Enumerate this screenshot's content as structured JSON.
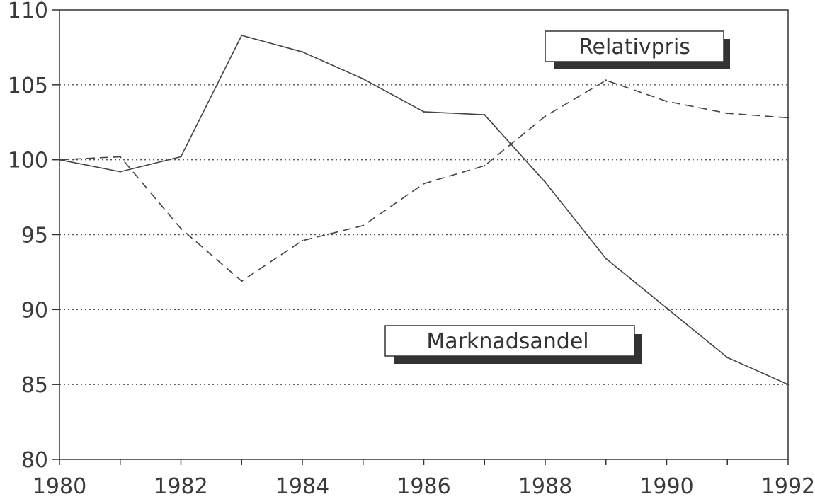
{
  "chart_data": {
    "type": "line",
    "title": "",
    "xlabel": "",
    "ylabel": "",
    "xlim": [
      1980,
      1992
    ],
    "ylim": [
      80,
      110
    ],
    "x_ticks": [
      "1980",
      "1982",
      "1984",
      "1986",
      "1988",
      "1990",
      "1992"
    ],
    "y_ticks": [
      "80",
      "85",
      "90",
      "95",
      "100",
      "105",
      "110"
    ],
    "grid": "horizontal dotted",
    "series": [
      {
        "name": "Relativpris",
        "style": "dashed",
        "color": "#444444",
        "x": [
          1980,
          1981,
          1982,
          1983,
          1984,
          1985,
          1986,
          1987,
          1988,
          1989,
          1990,
          1991,
          1992
        ],
        "values": [
          100.0,
          100.2,
          95.4,
          91.9,
          94.6,
          95.6,
          98.4,
          99.6,
          102.9,
          105.3,
          103.9,
          103.1,
          102.8
        ]
      },
      {
        "name": "Marknadsandel",
        "style": "solid",
        "color": "#444444",
        "x": [
          1980,
          1981,
          1982,
          1983,
          1984,
          1985,
          1986,
          1987,
          1988,
          1989,
          1990,
          1991,
          1992
        ],
        "values": [
          100.0,
          99.2,
          100.2,
          108.3,
          107.2,
          105.4,
          103.2,
          103.0,
          98.5,
          93.4,
          90.1,
          86.8,
          85.0
        ]
      }
    ],
    "annotations": [
      {
        "text": "Relativpris",
        "series": "Relativpris"
      },
      {
        "text": "Marknadsandel",
        "series": "Marknadsandel"
      }
    ]
  }
}
